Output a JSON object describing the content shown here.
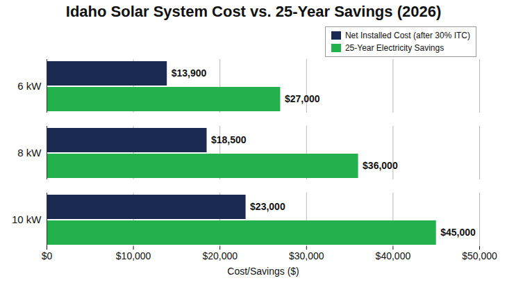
{
  "chart_data": {
    "type": "bar",
    "orientation": "horizontal",
    "title": "Idaho Solar System Cost vs. 25-Year Savings (2026)",
    "x_label": "Cost/Savings ($)",
    "categories": [
      "6 kW",
      "8 kW",
      "10 kW"
    ],
    "series": [
      {
        "name": "Net Installed Cost (after 30% ITC)",
        "color": "#1b2a50",
        "values": [
          13900,
          18500,
          23000
        ],
        "value_labels": [
          "$13,900",
          "$18,500",
          "$23,000"
        ]
      },
      {
        "name": "25-Year Electricity Savings",
        "color": "#22b14c",
        "values": [
          27000,
          36000,
          45000
        ],
        "value_labels": [
          "$27,000",
          "$36,000",
          "$45,000"
        ]
      }
    ],
    "xlim": [
      0,
      50000
    ],
    "xticks": [
      {
        "value": 0,
        "label": "$0"
      },
      {
        "value": 10000,
        "label": "$10,000"
      },
      {
        "value": 20000,
        "label": "$20,000"
      },
      {
        "value": 30000,
        "label": "$30,000"
      },
      {
        "value": 40000,
        "label": "$40,000"
      },
      {
        "value": 50000,
        "label": "$50,000"
      }
    ],
    "grid": true,
    "legend": "top-right",
    "data_labels": true
  }
}
